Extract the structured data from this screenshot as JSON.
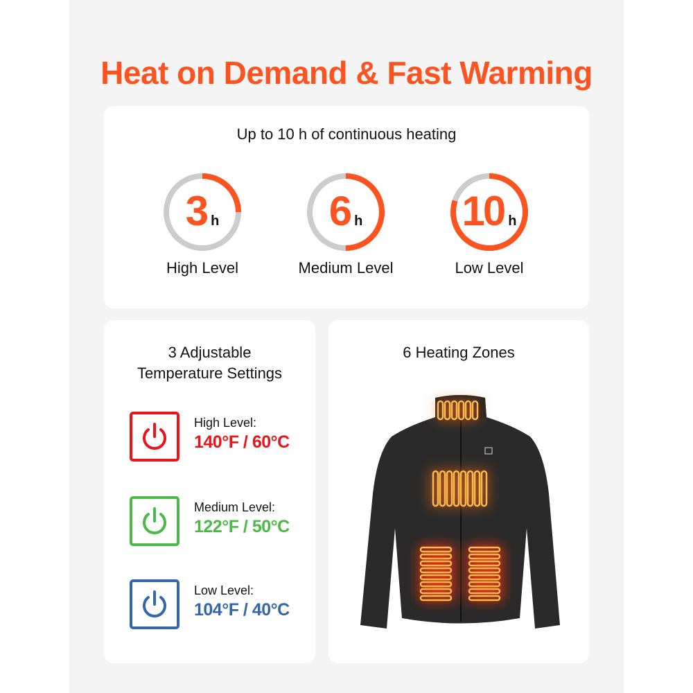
{
  "title": "Heat on Demand & Fast Warming",
  "duration_card": {
    "subtitle": "Up to 10 h of continuous heating",
    "rings": [
      {
        "value": "3",
        "unit": "h",
        "label": "High Level",
        "fill_fraction": 0.25
      },
      {
        "value": "6",
        "unit": "h",
        "label": "Medium Level",
        "fill_fraction": 0.5
      },
      {
        "value": "10",
        "unit": "h",
        "label": "Low Level",
        "fill_fraction": 0.8
      }
    ]
  },
  "settings_card": {
    "title_line1": "3 Adjustable",
    "title_line2": "Temperature Settings",
    "levels": [
      {
        "name": "High Level:",
        "temp": "140°F / 60°C",
        "color": "#e8161b",
        "icon": "power-icon"
      },
      {
        "name": "Medium Level:",
        "temp": "122°F / 50°C",
        "color": "#4cb848",
        "icon": "power-icon"
      },
      {
        "name": "Low Level:",
        "temp": "104°F / 40°C",
        "color": "#3366aa",
        "icon": "power-icon"
      }
    ]
  },
  "zones_card": {
    "title": "6 Heating Zones"
  },
  "colors": {
    "accent": "#fc5420",
    "ring_track": "#cccccc",
    "panel": "#f4f4f4"
  }
}
